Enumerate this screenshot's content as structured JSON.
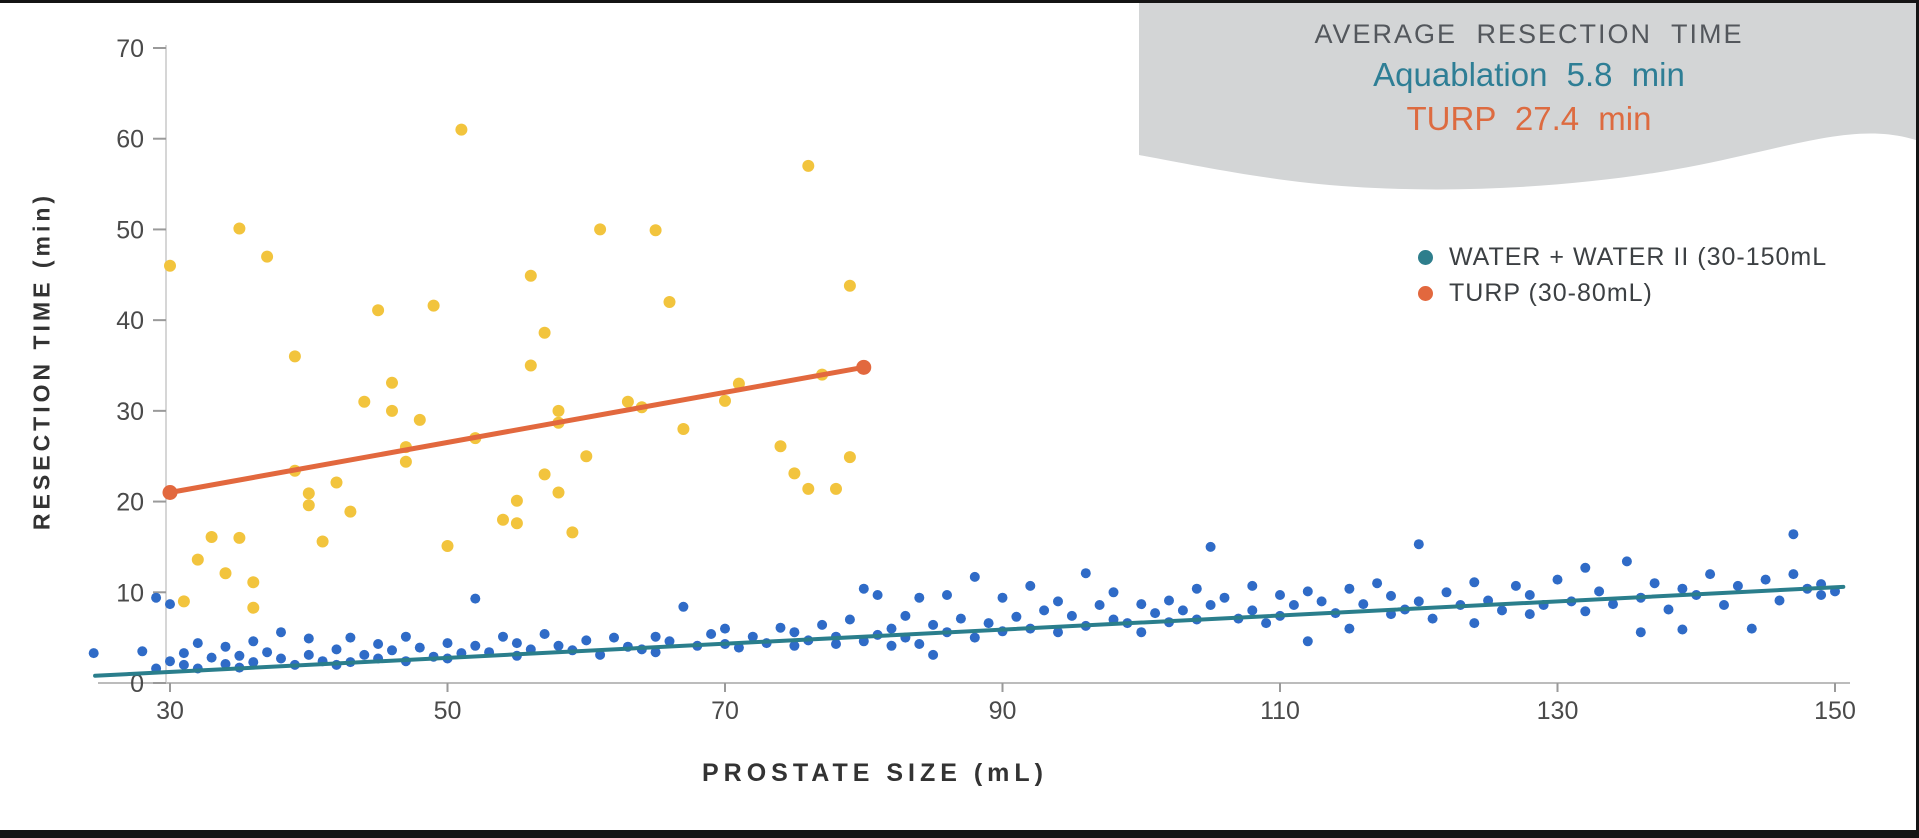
{
  "summary_box": {
    "title": "AVERAGE RESECTION TIME",
    "background": "#D3D5D6",
    "rows": [
      {
        "text": "Aquablation 5.8 min",
        "color": "#2E7E95"
      },
      {
        "text": "TURP 27.4 min",
        "color": "#DD6B40"
      }
    ]
  },
  "legend": {
    "items": [
      {
        "label": "WATER + WATER II (30-150mL",
        "color": "#2E7E8C"
      },
      {
        "label": "TURP (30-80mL)",
        "color": "#E2683E"
      }
    ]
  },
  "chart_data": {
    "type": "scatter",
    "title": "",
    "xlabel": "PROSTATE SIZE (mL)",
    "ylabel": "RESECTION TIME (min)",
    "xlim": [
      24,
      152
    ],
    "ylim": [
      0,
      70
    ],
    "xticks": [
      30,
      50,
      70,
      90,
      110,
      130,
      150
    ],
    "yticks": [
      0,
      10,
      20,
      30,
      40,
      50,
      60,
      70
    ],
    "grid": false,
    "legend_position": "upper right",
    "annotations": {
      "average_resection_time": {
        "aquablation": "5.8 min",
        "turp": "27.4 min"
      }
    },
    "series": [
      {
        "id": "aquablation",
        "name": "WATER + WATER II (30-150mL)",
        "color": "#2F6BC7",
        "marker_radius": 5,
        "points": [
          [
            24.5,
            3.3
          ],
          [
            28,
            3.5
          ],
          [
            29,
            1.6
          ],
          [
            29,
            9.4
          ],
          [
            30,
            2.4
          ],
          [
            30,
            8.7
          ],
          [
            31,
            2.0
          ],
          [
            31,
            3.3
          ],
          [
            32,
            1.6
          ],
          [
            32,
            4.4
          ],
          [
            33,
            2.8
          ],
          [
            34,
            2.1
          ],
          [
            34,
            4.0
          ],
          [
            35,
            3.0
          ],
          [
            35,
            1.7
          ],
          [
            36,
            4.6
          ],
          [
            36,
            2.3
          ],
          [
            37,
            3.4
          ],
          [
            38,
            2.7
          ],
          [
            38,
            5.6
          ],
          [
            39,
            2.0
          ],
          [
            40,
            3.1
          ],
          [
            40,
            4.9
          ],
          [
            41,
            2.4
          ],
          [
            42,
            3.7
          ],
          [
            42,
            2.0
          ],
          [
            43,
            2.3
          ],
          [
            43,
            5.0
          ],
          [
            44,
            3.1
          ],
          [
            45,
            4.3
          ],
          [
            45,
            2.7
          ],
          [
            46,
            3.6
          ],
          [
            47,
            2.4
          ],
          [
            47,
            5.1
          ],
          [
            48,
            3.9
          ],
          [
            49,
            2.9
          ],
          [
            50,
            4.4
          ],
          [
            50,
            2.7
          ],
          [
            51,
            3.3
          ],
          [
            52,
            9.3
          ],
          [
            52,
            4.1
          ],
          [
            53,
            3.4
          ],
          [
            54,
            5.1
          ],
          [
            55,
            3.0
          ],
          [
            55,
            4.4
          ],
          [
            56,
            3.7
          ],
          [
            57,
            5.4
          ],
          [
            58,
            4.1
          ],
          [
            59,
            3.6
          ],
          [
            60,
            4.7
          ],
          [
            61,
            3.1
          ],
          [
            62,
            5.0
          ],
          [
            63,
            4.0
          ],
          [
            64,
            3.7
          ],
          [
            65,
            5.1
          ],
          [
            65,
            3.4
          ],
          [
            66,
            4.6
          ],
          [
            67,
            8.4
          ],
          [
            68,
            4.1
          ],
          [
            69,
            5.4
          ],
          [
            70,
            4.3
          ],
          [
            70,
            6.0
          ],
          [
            71,
            3.9
          ],
          [
            72,
            5.1
          ],
          [
            73,
            4.4
          ],
          [
            74,
            6.1
          ],
          [
            75,
            4.1
          ],
          [
            75,
            5.6
          ],
          [
            76,
            4.7
          ],
          [
            77,
            6.4
          ],
          [
            78,
            4.3
          ],
          [
            78,
            5.1
          ],
          [
            79,
            7.0
          ],
          [
            80,
            4.6
          ],
          [
            80,
            10.4
          ],
          [
            81,
            9.7
          ],
          [
            81,
            5.3
          ],
          [
            82,
            6.0
          ],
          [
            82,
            4.1
          ],
          [
            83,
            7.4
          ],
          [
            83,
            5.0
          ],
          [
            84,
            9.4
          ],
          [
            84,
            4.3
          ],
          [
            85,
            6.4
          ],
          [
            85,
            3.1
          ],
          [
            86,
            9.7
          ],
          [
            86,
            5.6
          ],
          [
            87,
            7.1
          ],
          [
            88,
            11.7
          ],
          [
            88,
            5.0
          ],
          [
            89,
            6.6
          ],
          [
            90,
            9.4
          ],
          [
            90,
            5.7
          ],
          [
            91,
            7.3
          ],
          [
            92,
            10.7
          ],
          [
            92,
            6.0
          ],
          [
            93,
            8.0
          ],
          [
            94,
            5.6
          ],
          [
            94,
            9.0
          ],
          [
            95,
            7.4
          ],
          [
            96,
            12.1
          ],
          [
            96,
            6.3
          ],
          [
            97,
            8.6
          ],
          [
            98,
            7.0
          ],
          [
            98,
            10.0
          ],
          [
            99,
            6.6
          ],
          [
            100,
            8.7
          ],
          [
            100,
            5.6
          ],
          [
            101,
            7.7
          ],
          [
            102,
            9.1
          ],
          [
            102,
            6.7
          ],
          [
            103,
            8.0
          ],
          [
            104,
            10.4
          ],
          [
            104,
            7.0
          ],
          [
            105,
            15.0
          ],
          [
            105,
            8.6
          ],
          [
            106,
            9.4
          ],
          [
            107,
            7.1
          ],
          [
            108,
            10.7
          ],
          [
            108,
            8.0
          ],
          [
            109,
            6.6
          ],
          [
            110,
            9.7
          ],
          [
            110,
            7.4
          ],
          [
            111,
            8.6
          ],
          [
            112,
            10.1
          ],
          [
            112,
            4.6
          ],
          [
            113,
            9.0
          ],
          [
            114,
            7.7
          ],
          [
            115,
            10.4
          ],
          [
            115,
            6.0
          ],
          [
            116,
            8.7
          ],
          [
            117,
            11.0
          ],
          [
            118,
            7.6
          ],
          [
            118,
            9.6
          ],
          [
            119,
            8.1
          ],
          [
            120,
            15.3
          ],
          [
            120,
            9.0
          ],
          [
            121,
            7.1
          ],
          [
            122,
            10.0
          ],
          [
            123,
            8.6
          ],
          [
            124,
            11.1
          ],
          [
            124,
            6.6
          ],
          [
            125,
            9.1
          ],
          [
            126,
            8.0
          ],
          [
            127,
            10.7
          ],
          [
            128,
            7.6
          ],
          [
            128,
            9.7
          ],
          [
            129,
            8.6
          ],
          [
            130,
            11.4
          ],
          [
            131,
            9.0
          ],
          [
            132,
            12.7
          ],
          [
            132,
            7.9
          ],
          [
            133,
            10.1
          ],
          [
            134,
            8.7
          ],
          [
            135,
            13.4
          ],
          [
            136,
            9.4
          ],
          [
            136,
            5.6
          ],
          [
            137,
            11.0
          ],
          [
            138,
            8.1
          ],
          [
            139,
            10.4
          ],
          [
            139,
            5.9
          ],
          [
            140,
            9.7
          ],
          [
            141,
            12.0
          ],
          [
            142,
            8.6
          ],
          [
            143,
            10.7
          ],
          [
            144,
            6.0
          ],
          [
            145,
            11.4
          ],
          [
            146,
            9.1
          ],
          [
            147,
            16.4
          ],
          [
            147,
            12.0
          ],
          [
            148,
            10.4
          ],
          [
            149,
            9.7
          ],
          [
            149,
            10.9
          ],
          [
            150,
            10.1
          ]
        ]
      },
      {
        "id": "turp",
        "name": "TURP (30-80mL)",
        "color": "#F2C43D",
        "marker_radius": 6,
        "points": [
          [
            30,
            46.0
          ],
          [
            31,
            9.0
          ],
          [
            32,
            13.6
          ],
          [
            33,
            16.1
          ],
          [
            34,
            12.1
          ],
          [
            35,
            16.0
          ],
          [
            35,
            50.1
          ],
          [
            36,
            11.1
          ],
          [
            36,
            8.3
          ],
          [
            37,
            47.0
          ],
          [
            39,
            36.0
          ],
          [
            39,
            23.4
          ],
          [
            40,
            20.9
          ],
          [
            40,
            19.6
          ],
          [
            41,
            15.6
          ],
          [
            42,
            22.1
          ],
          [
            43,
            18.9
          ],
          [
            44,
            31.0
          ],
          [
            45,
            41.1
          ],
          [
            46,
            30.0
          ],
          [
            46,
            33.1
          ],
          [
            47,
            26.0
          ],
          [
            47,
            24.4
          ],
          [
            48,
            29.0
          ],
          [
            49,
            41.6
          ],
          [
            50,
            15.1
          ],
          [
            51,
            61.0
          ],
          [
            52,
            27.0
          ],
          [
            54,
            18.0
          ],
          [
            55,
            17.6
          ],
          [
            55,
            20.1
          ],
          [
            56,
            44.9
          ],
          [
            56,
            35.0
          ],
          [
            57,
            38.6
          ],
          [
            57,
            23.0
          ],
          [
            58,
            30.0
          ],
          [
            58,
            28.7
          ],
          [
            58,
            21.0
          ],
          [
            59,
            16.6
          ],
          [
            60,
            25.0
          ],
          [
            61,
            50.0
          ],
          [
            63,
            31.0
          ],
          [
            64,
            30.4
          ],
          [
            65,
            49.9
          ],
          [
            66,
            42.0
          ],
          [
            67,
            28.0
          ],
          [
            70,
            31.1
          ],
          [
            71,
            33.0
          ],
          [
            74,
            26.1
          ],
          [
            75,
            23.1
          ],
          [
            76,
            57.0
          ],
          [
            76,
            21.4
          ],
          [
            77,
            34.0
          ],
          [
            78,
            21.4
          ],
          [
            79,
            24.9
          ],
          [
            79,
            43.8
          ]
        ]
      }
    ],
    "trend_lines": [
      {
        "id": "aquablation",
        "color": "#2A7E8C",
        "width": 4,
        "x1": 24.6,
        "y1": 0.8,
        "x2": 150.6,
        "y2": 10.6,
        "endpoint_dots": false
      },
      {
        "id": "turp",
        "color": "#E2683E",
        "width": 5,
        "x1": 30,
        "y1": 21.0,
        "x2": 80,
        "y2": 34.8,
        "endpoint_dots": true
      }
    ]
  }
}
